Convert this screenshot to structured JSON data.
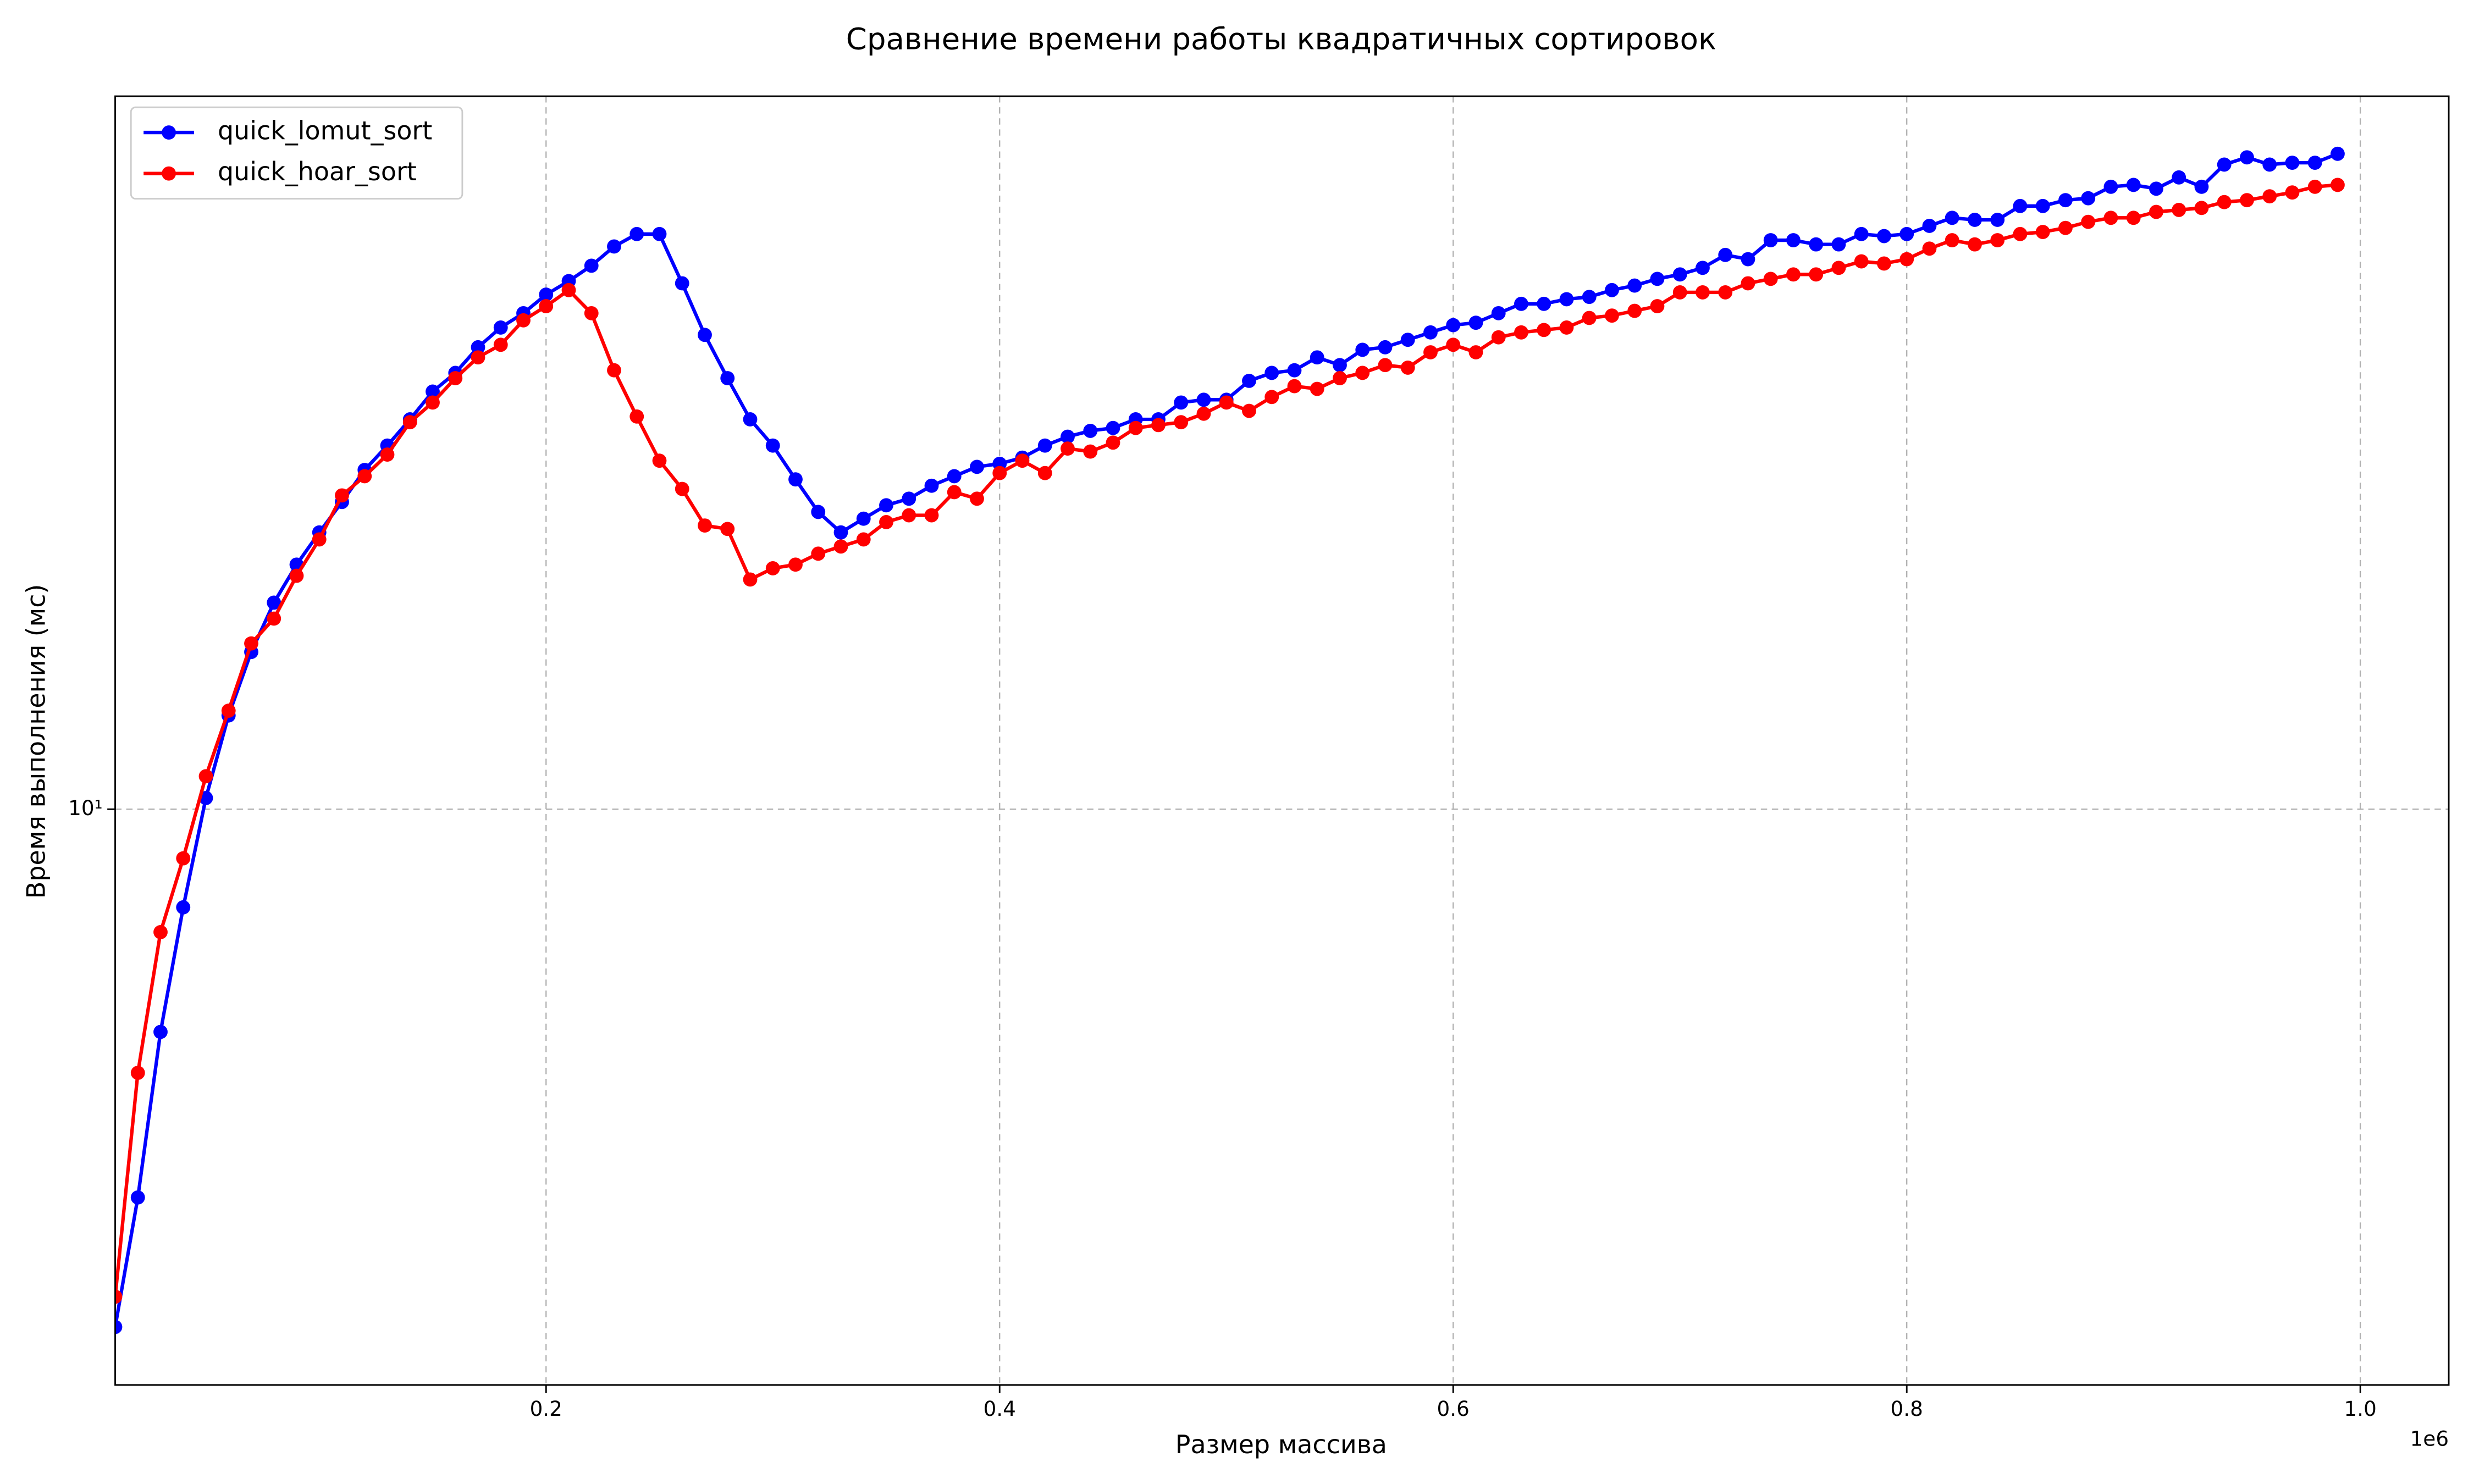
{
  "chart_data": {
    "type": "line",
    "title": "Сравнение времени работы квадратичных сортировок",
    "x_label": "Размер массива",
    "y_label": "Время выполнения (мс)",
    "x_offset_label": "1e6",
    "y_scale": "log",
    "grid": true,
    "legend_position": "upper left",
    "x": [
      10000,
      20000,
      30000,
      40000,
      50000,
      60000,
      70000,
      80000,
      90000,
      100000,
      110000,
      120000,
      130000,
      140000,
      150000,
      160000,
      170000,
      180000,
      190000,
      200000,
      210000,
      220000,
      230000,
      240000,
      250000,
      260000,
      270000,
      280000,
      290000,
      300000,
      310000,
      320000,
      330000,
      340000,
      350000,
      360000,
      370000,
      380000,
      390000,
      400000,
      410000,
      420000,
      430000,
      440000,
      450000,
      460000,
      470000,
      480000,
      490000,
      500000,
      510000,
      520000,
      530000,
      540000,
      550000,
      560000,
      570000,
      580000,
      590000,
      600000,
      610000,
      620000,
      630000,
      640000,
      650000,
      660000,
      670000,
      680000,
      690000,
      700000,
      710000,
      720000,
      730000,
      740000,
      750000,
      760000,
      770000,
      780000,
      790000,
      800000,
      810000,
      820000,
      830000,
      840000,
      850000,
      860000,
      870000,
      880000,
      890000,
      900000,
      910000,
      920000,
      930000,
      940000,
      950000,
      960000,
      970000,
      980000,
      990000
    ],
    "series": [
      {
        "name": "quick_lomut_sort",
        "color": "#0000ff",
        "values": [
          4.01,
          5.04,
          6.75,
          8.41,
          10.2,
          11.8,
          13.2,
          14.4,
          15.4,
          16.3,
          17.2,
          18.2,
          19.0,
          19.9,
          20.9,
          21.6,
          22.6,
          23.4,
          24.0,
          24.8,
          25.4,
          26.1,
          27.0,
          27.6,
          27.6,
          25.3,
          23.1,
          21.4,
          19.9,
          19.0,
          17.9,
          16.9,
          16.3,
          16.7,
          17.1,
          17.3,
          17.7,
          18.0,
          18.3,
          18.4,
          18.6,
          19.0,
          19.3,
          19.5,
          19.6,
          19.9,
          19.9,
          20.5,
          20.6,
          20.6,
          21.3,
          21.6,
          21.7,
          22.2,
          21.9,
          22.5,
          22.6,
          22.9,
          23.2,
          23.5,
          23.6,
          24.0,
          24.4,
          24.4,
          24.6,
          24.7,
          25.0,
          25.2,
          25.5,
          25.7,
          26.0,
          26.6,
          26.4,
          27.3,
          27.3,
          27.1,
          27.1,
          27.6,
          27.5,
          27.6,
          28.0,
          28.4,
          28.3,
          28.3,
          29.0,
          29.0,
          29.3,
          29.4,
          30.0,
          30.1,
          29.9,
          30.5,
          30.0,
          31.2,
          31.6,
          31.2,
          31.3,
          31.3,
          31.8
        ]
      },
      {
        "name": "quick_hoar_sort",
        "color": "#ff0000",
        "values": [
          4.23,
          6.28,
          8.05,
          9.17,
          10.6,
          11.9,
          13.4,
          14.0,
          15.1,
          16.1,
          17.4,
          18.0,
          18.7,
          19.8,
          20.5,
          21.4,
          22.2,
          22.7,
          23.7,
          24.3,
          25.0,
          24.0,
          21.7,
          20.0,
          18.5,
          17.6,
          16.5,
          16.4,
          15.0,
          15.3,
          15.4,
          15.7,
          15.9,
          16.1,
          16.6,
          16.8,
          16.8,
          17.5,
          17.3,
          18.1,
          18.5,
          18.1,
          18.9,
          18.8,
          19.1,
          19.6,
          19.7,
          19.8,
          20.1,
          20.5,
          20.2,
          20.7,
          21.1,
          21.0,
          21.4,
          21.6,
          21.9,
          21.8,
          22.4,
          22.7,
          22.4,
          23.0,
          23.2,
          23.3,
          23.4,
          23.8,
          23.9,
          24.1,
          24.3,
          24.9,
          24.9,
          24.9,
          25.3,
          25.5,
          25.7,
          25.7,
          26.0,
          26.3,
          26.2,
          26.4,
          26.9,
          27.3,
          27.1,
          27.3,
          27.6,
          27.7,
          27.9,
          28.2,
          28.4,
          28.4,
          28.7,
          28.8,
          28.9,
          29.2,
          29.3,
          29.5,
          29.7,
          30.0,
          30.1
        ]
      }
    ],
    "xlim": [
      10000,
      1039000
    ],
    "ylim": [
      3.62,
      35.2
    ],
    "xticks": [
      {
        "value": 200000,
        "label": "0.2"
      },
      {
        "value": 400000,
        "label": "0.4"
      },
      {
        "value": 600000,
        "label": "0.6"
      },
      {
        "value": 800000,
        "label": "0.8"
      },
      {
        "value": 1000000,
        "label": "1.0"
      }
    ],
    "yticks": [
      {
        "value": 10,
        "label": "10¹"
      }
    ]
  }
}
